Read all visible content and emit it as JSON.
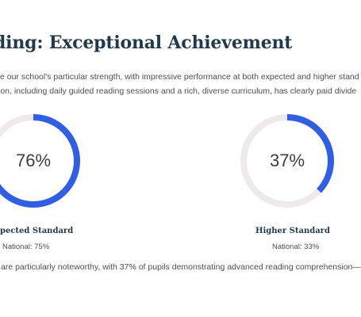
{
  "title": "ding: Exceptional Achievement",
  "intro": {
    "line1": "e our school's particular strength, with impressive performance at both expected and higher stand",
    "line2": "ion, including daily guided reading sessions and a rich, diverse curriculum, has clearly paid divide"
  },
  "colors": {
    "accent": "#2f5ee8",
    "track": "#eeeaec",
    "title": "#1f3a4d",
    "body_text": "#4b4f55"
  },
  "chart_data": [
    {
      "type": "pie",
      "variant": "donut",
      "value": 76,
      "max": 100,
      "value_label": "76%",
      "label": "xpected Standard",
      "national": {
        "prefix": "National:",
        "value": "75%"
      }
    },
    {
      "type": "pie",
      "variant": "donut",
      "value": 37,
      "max": 100,
      "value_label": "37%",
      "label": "Higher Standard",
      "national": {
        "prefix": "National:",
        "value": "33%"
      }
    }
  ],
  "footer": "are particularly noteworthy, with 37% of pupils demonstrating advanced reading comprehension—"
}
